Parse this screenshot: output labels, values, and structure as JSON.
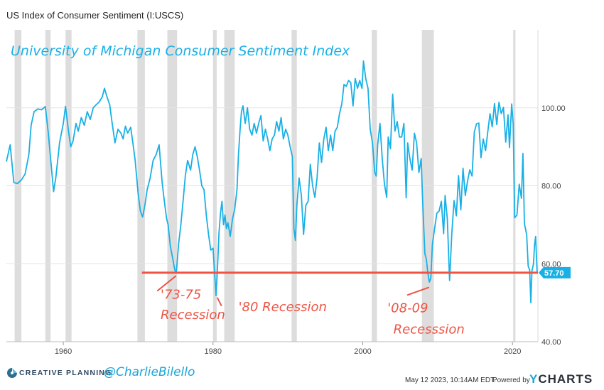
{
  "title": "US Index of Consumer Sentiment (I:USCS)",
  "footer": {
    "timestamp": "May 12 2023, 10:14AM EDT.",
    "powered_by": "Powered by",
    "brand_y": "Y",
    "brand_rest": "CHARTS",
    "company": "CREATIVE PLANNING",
    "handle": "@CharlieBilello"
  },
  "colors": {
    "series": "#19b0e6",
    "recession": "#dddddd",
    "reference": "#ef5343",
    "annotation": "#ef5343",
    "handle": "#1aa5d6"
  },
  "chart_data": {
    "type": "line",
    "title": "University of Michigan Consumer Sentiment Index",
    "xlabel": "",
    "ylabel": "",
    "xlim": [
      1952.4,
      2023.4
    ],
    "ylim": [
      40,
      120
    ],
    "x_ticks": [
      1960,
      1980,
      2000,
      2020
    ],
    "y_ticks": [
      40,
      60,
      80,
      100
    ],
    "y_tick_labels": [
      "40.00",
      "60.00",
      "80.00",
      "100.00"
    ],
    "grid": "horizontal",
    "current_value": 57.7,
    "current_label": "57.70",
    "reference_line": {
      "y": 57.7,
      "x_start": 1970.5,
      "x_end": 2023.4
    },
    "recessions": [
      [
        1953.5,
        1954.4
      ],
      [
        1957.6,
        1958.3
      ],
      [
        1960.3,
        1961.1
      ],
      [
        1969.9,
        1970.9
      ],
      [
        1973.9,
        1975.2
      ],
      [
        1980.0,
        1980.5
      ],
      [
        1981.5,
        1982.9
      ],
      [
        1990.5,
        1991.2
      ],
      [
        2001.2,
        2001.9
      ],
      [
        2007.9,
        2009.5
      ],
      [
        2020.1,
        2020.4
      ]
    ],
    "annotations": [
      {
        "text": "'73-75",
        "x": 1973.0,
        "y": 51.0
      },
      {
        "text": "Recession",
        "x": 1973.0,
        "y": 45.8
      },
      {
        "text": "'80 Recession",
        "x": 1983.4,
        "y": 47.8
      },
      {
        "text": "'08-09",
        "x": 2003.3,
        "y": 47.6
      },
      {
        "text": "Recesssion",
        "x": 2004.1,
        "y": 42.1
      }
    ],
    "arrows": [
      {
        "from": [
          1972.6,
          53.1
        ],
        "to": [
          1975.0,
          56.8
        ]
      },
      {
        "from": [
          1981.1,
          49.3
        ],
        "to": [
          1980.6,
          51.2
        ]
      },
      {
        "from": [
          2006.0,
          52.0
        ],
        "to": [
          2008.8,
          53.9
        ]
      }
    ],
    "series": [
      {
        "values": [
          [
            1952.4,
            86.2
          ],
          [
            1952.9,
            90.5
          ],
          [
            1953.4,
            80.8
          ],
          [
            1953.9,
            80.6
          ],
          [
            1954.4,
            81.5
          ],
          [
            1954.9,
            83.0
          ],
          [
            1955.4,
            88.0
          ],
          [
            1955.7,
            95.5
          ],
          [
            1956.1,
            99.0
          ],
          [
            1956.6,
            99.7
          ],
          [
            1957.1,
            99.5
          ],
          [
            1957.6,
            100.3
          ],
          [
            1958.0,
            93.5
          ],
          [
            1958.4,
            85.0
          ],
          [
            1958.7,
            78.5
          ],
          [
            1959.0,
            82.0
          ],
          [
            1959.5,
            91.0
          ],
          [
            1960.0,
            96.0
          ],
          [
            1960.3,
            100.4
          ],
          [
            1960.7,
            94.0
          ],
          [
            1961.0,
            90.0
          ],
          [
            1961.3,
            91.5
          ],
          [
            1961.7,
            96.0
          ],
          [
            1962.0,
            94.0
          ],
          [
            1962.4,
            97.5
          ],
          [
            1962.8,
            95.5
          ],
          [
            1963.2,
            99.0
          ],
          [
            1963.6,
            97.0
          ],
          [
            1964.0,
            100.0
          ],
          [
            1964.4,
            100.8
          ],
          [
            1964.8,
            101.5
          ],
          [
            1965.2,
            102.8
          ],
          [
            1965.5,
            105.0
          ],
          [
            1965.8,
            103.0
          ],
          [
            1966.2,
            100.8
          ],
          [
            1966.5,
            96.5
          ],
          [
            1966.9,
            91.0
          ],
          [
            1967.3,
            94.5
          ],
          [
            1967.7,
            93.5
          ],
          [
            1968.0,
            92.0
          ],
          [
            1968.3,
            95.3
          ],
          [
            1968.6,
            93.5
          ],
          [
            1969.0,
            95.0
          ],
          [
            1969.3,
            91.0
          ],
          [
            1969.6,
            86.5
          ],
          [
            1970.0,
            78.0
          ],
          [
            1970.3,
            73.5
          ],
          [
            1970.6,
            72.0
          ],
          [
            1970.9,
            75.0
          ],
          [
            1971.2,
            79.0
          ],
          [
            1971.6,
            82.0
          ],
          [
            1972.0,
            86.5
          ],
          [
            1972.4,
            88.0
          ],
          [
            1972.8,
            90.5
          ],
          [
            1973.2,
            81.0
          ],
          [
            1973.5,
            76.0
          ],
          [
            1973.8,
            71.5
          ],
          [
            1974.0,
            70.0
          ],
          [
            1974.3,
            64.5
          ],
          [
            1974.6,
            61.5
          ],
          [
            1974.9,
            58.4
          ],
          [
            1975.1,
            57.6
          ],
          [
            1975.4,
            65.0
          ],
          [
            1975.7,
            70.0
          ],
          [
            1976.0,
            76.0
          ],
          [
            1976.3,
            82.5
          ],
          [
            1976.6,
            86.5
          ],
          [
            1977.0,
            84.0
          ],
          [
            1977.3,
            88.0
          ],
          [
            1977.6,
            90.0
          ],
          [
            1977.9,
            87.5
          ],
          [
            1978.2,
            84.0
          ],
          [
            1978.5,
            80.0
          ],
          [
            1978.8,
            79.0
          ],
          [
            1979.1,
            72.5
          ],
          [
            1979.4,
            67.5
          ],
          [
            1979.7,
            63.5
          ],
          [
            1980.0,
            64.0
          ],
          [
            1980.2,
            58.0
          ],
          [
            1980.4,
            51.8
          ],
          [
            1980.6,
            59.0
          ],
          [
            1980.8,
            68.0
          ],
          [
            1981.0,
            73.0
          ],
          [
            1981.2,
            76.0
          ],
          [
            1981.4,
            70.0
          ],
          [
            1981.6,
            72.5
          ],
          [
            1981.8,
            69.0
          ],
          [
            1982.0,
            70.5
          ],
          [
            1982.3,
            67.0
          ],
          [
            1982.6,
            71.5
          ],
          [
            1982.9,
            74.0
          ],
          [
            1983.2,
            79.0
          ],
          [
            1983.4,
            88.0
          ],
          [
            1983.6,
            94.0
          ],
          [
            1983.8,
            99.0
          ],
          [
            1984.0,
            100.5
          ],
          [
            1984.3,
            96.0
          ],
          [
            1984.6,
            100.0
          ],
          [
            1984.9,
            94.5
          ],
          [
            1985.2,
            93.0
          ],
          [
            1985.5,
            96.0
          ],
          [
            1985.8,
            93.5
          ],
          [
            1986.1,
            96.0
          ],
          [
            1986.4,
            98.0
          ],
          [
            1986.7,
            91.5
          ],
          [
            1987.0,
            94.5
          ],
          [
            1987.3,
            92.0
          ],
          [
            1987.6,
            89.0
          ],
          [
            1987.9,
            92.0
          ],
          [
            1988.2,
            93.0
          ],
          [
            1988.5,
            96.5
          ],
          [
            1988.8,
            94.0
          ],
          [
            1989.1,
            97.5
          ],
          [
            1989.4,
            92.0
          ],
          [
            1989.7,
            94.5
          ],
          [
            1990.0,
            93.0
          ],
          [
            1990.3,
            90.0
          ],
          [
            1990.6,
            87.5
          ],
          [
            1990.8,
            69.0
          ],
          [
            1991.0,
            66.0
          ],
          [
            1991.2,
            75.0
          ],
          [
            1991.5,
            82.0
          ],
          [
            1991.8,
            77.5
          ],
          [
            1992.1,
            67.5
          ],
          [
            1992.4,
            75.0
          ],
          [
            1992.7,
            76.0
          ],
          [
            1993.0,
            85.5
          ],
          [
            1993.3,
            80.0
          ],
          [
            1993.6,
            77.0
          ],
          [
            1993.9,
            82.0
          ],
          [
            1994.2,
            91.0
          ],
          [
            1994.5,
            86.0
          ],
          [
            1994.8,
            92.0
          ],
          [
            1995.1,
            95.0
          ],
          [
            1995.4,
            89.0
          ],
          [
            1995.7,
            93.0
          ],
          [
            1996.0,
            89.0
          ],
          [
            1996.3,
            94.0
          ],
          [
            1996.6,
            95.0
          ],
          [
            1996.9,
            98.5
          ],
          [
            1997.2,
            101.0
          ],
          [
            1997.5,
            106.0
          ],
          [
            1997.8,
            105.5
          ],
          [
            1998.1,
            107.0
          ],
          [
            1998.4,
            106.5
          ],
          [
            1998.7,
            100.5
          ],
          [
            1999.0,
            107.5
          ],
          [
            1999.3,
            105.0
          ],
          [
            1999.6,
            107.0
          ],
          [
            1999.9,
            105.0
          ],
          [
            2000.1,
            112.0
          ],
          [
            2000.4,
            107.5
          ],
          [
            2000.7,
            105.0
          ],
          [
            2001.0,
            94.5
          ],
          [
            2001.3,
            91.0
          ],
          [
            2001.6,
            83.5
          ],
          [
            2001.8,
            82.5
          ],
          [
            2002.0,
            90.5
          ],
          [
            2002.3,
            96.0
          ],
          [
            2002.6,
            87.0
          ],
          [
            2002.9,
            80.5
          ],
          [
            2003.2,
            77.0
          ],
          [
            2003.4,
            92.5
          ],
          [
            2003.7,
            89.5
          ],
          [
            2004.0,
            103.5
          ],
          [
            2004.3,
            94.0
          ],
          [
            2004.6,
            96.5
          ],
          [
            2004.9,
            92.5
          ],
          [
            2005.2,
            92.5
          ],
          [
            2005.5,
            96.0
          ],
          [
            2005.8,
            76.9
          ],
          [
            2006.0,
            91.0
          ],
          [
            2006.3,
            87.0
          ],
          [
            2006.6,
            84.0
          ],
          [
            2006.9,
            93.5
          ],
          [
            2007.2,
            91.0
          ],
          [
            2007.5,
            83.4
          ],
          [
            2007.8,
            87.0
          ],
          [
            2008.0,
            76.0
          ],
          [
            2008.3,
            62.6
          ],
          [
            2008.5,
            61.2
          ],
          [
            2008.7,
            57.6
          ],
          [
            2008.9,
            55.3
          ],
          [
            2009.1,
            56.3
          ],
          [
            2009.3,
            65.0
          ],
          [
            2009.6,
            69.0
          ],
          [
            2009.9,
            73.0
          ],
          [
            2010.2,
            73.5
          ],
          [
            2010.5,
            76.0
          ],
          [
            2010.8,
            67.7
          ],
          [
            2011.0,
            77.5
          ],
          [
            2011.3,
            71.5
          ],
          [
            2011.6,
            55.7
          ],
          [
            2011.9,
            67.7
          ],
          [
            2012.2,
            76.2
          ],
          [
            2012.5,
            72.3
          ],
          [
            2012.8,
            82.6
          ],
          [
            2013.1,
            73.8
          ],
          [
            2013.4,
            84.5
          ],
          [
            2013.7,
            77.5
          ],
          [
            2014.0,
            81.2
          ],
          [
            2014.3,
            84.1
          ],
          [
            2014.6,
            82.5
          ],
          [
            2014.9,
            93.8
          ],
          [
            2015.2,
            95.9
          ],
          [
            2015.5,
            96.1
          ],
          [
            2015.8,
            87.2
          ],
          [
            2016.1,
            92.0
          ],
          [
            2016.4,
            89.0
          ],
          [
            2016.7,
            93.8
          ],
          [
            2017.0,
            98.5
          ],
          [
            2017.3,
            95.1
          ],
          [
            2017.6,
            101.1
          ],
          [
            2017.9,
            95.7
          ],
          [
            2018.2,
            101.4
          ],
          [
            2018.5,
            98.5
          ],
          [
            2018.8,
            100.1
          ],
          [
            2019.1,
            91.2
          ],
          [
            2019.4,
            98.2
          ],
          [
            2019.6,
            89.8
          ],
          [
            2019.9,
            101.0
          ],
          [
            2020.1,
            95.9
          ],
          [
            2020.3,
            71.8
          ],
          [
            2020.6,
            72.5
          ],
          [
            2020.9,
            80.4
          ],
          [
            2021.2,
            76.8
          ],
          [
            2021.4,
            88.3
          ],
          [
            2021.6,
            70.3
          ],
          [
            2021.9,
            67.4
          ],
          [
            2022.1,
            59.4
          ],
          [
            2022.3,
            58.4
          ],
          [
            2022.45,
            50.0
          ],
          [
            2022.6,
            58.2
          ],
          [
            2022.8,
            59.9
          ],
          [
            2022.95,
            64.9
          ],
          [
            2023.1,
            67.0
          ],
          [
            2023.2,
            62.0
          ],
          [
            2023.3,
            57.7
          ]
        ]
      }
    ]
  }
}
